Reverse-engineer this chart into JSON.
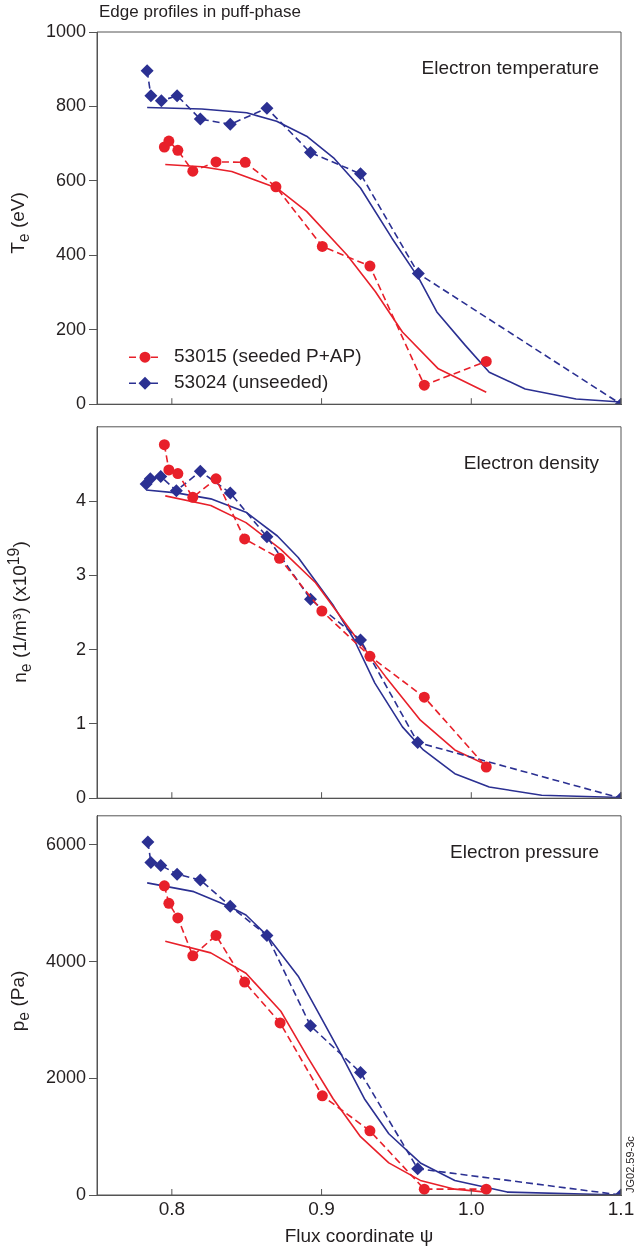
{
  "chart_data": [
    {
      "type": "line",
      "title": "Edge profiles in puff-phase",
      "ylabel": "T$_{e}$ (eV)",
      "annotations": [
        "Electron temperature"
      ],
      "xlim": [
        0.75,
        1.1
      ],
      "xticks": [
        0.8,
        0.9,
        1,
        1.1
      ],
      "ylim": [
        0,
        1000
      ],
      "yticks": [
        0,
        200,
        400,
        600,
        800,
        1000
      ],
      "tick_labels": "y",
      "grid": false,
      "legend": "bottom left",
      "series": [
        {
          "name": "53015 (seeded P+AP)",
          "color": "#e8202a",
          "marker": "circle",
          "line_style": "dashed",
          "x": [
            0.795,
            0.798,
            0.804,
            0.814,
            0.8295,
            0.849,
            0.8695,
            0.9005,
            0.9323,
            0.9686,
            1.01
          ],
          "values": [
            691,
            707,
            682,
            626,
            651,
            650,
            584,
            424,
            371,
            51,
            115
          ]
        },
        {
          "name": "53024 (unseeded)",
          "color": "#2b3092",
          "marker": "diamond",
          "line_style": "dashed",
          "x": [
            0.7835,
            0.786,
            0.793,
            0.8035,
            0.819,
            0.839,
            0.8635,
            0.8926,
            0.926,
            0.9646,
            1.1
          ],
          "values": [
            896,
            829,
            815,
            829,
            766,
            752,
            795,
            676,
            619,
            351,
            0
          ]
        },
        {
          "color": "#e8202a",
          "marker": "none",
          "line_style": "solid",
          "x": [
            0.7956,
            0.82,
            0.84,
            0.87,
            0.89,
            0.917,
            0.936,
            0.954,
            0.978,
            1.01
          ],
          "values": [
            644,
            638,
            625,
            581,
            518,
            401,
            302,
            194,
            95,
            32
          ]
        },
        {
          "color": "#2b3092",
          "marker": "none",
          "line_style": "solid",
          "x": [
            0.7835,
            0.82,
            0.85,
            0.87,
            0.89,
            0.908,
            0.926,
            0.947,
            0.965,
            0.977,
            0.996,
            1.012,
            1.036,
            1.07,
            1.1
          ],
          "values": [
            797,
            793,
            783,
            760,
            720,
            662,
            581,
            446,
            338,
            248,
            158,
            86,
            41,
            14,
            6
          ]
        }
      ]
    },
    {
      "type": "line",
      "ylabel": "n$_{e}$ (1/m³) (x10$^{19}$)",
      "annotations": [
        "Electron density"
      ],
      "xlim": [
        0.75,
        1.1
      ],
      "xticks": [
        0.8,
        0.9,
        1,
        1.1
      ],
      "ylim": [
        0,
        5
      ],
      "yticks": [
        0,
        1,
        2,
        3,
        4
      ],
      "tick_labels": "y",
      "grid": false,
      "series": [
        {
          "color": "#e8202a",
          "marker": "circle",
          "line_style": "dashed",
          "x": [
            0.795,
            0.798,
            0.804,
            0.814,
            0.8295,
            0.8486,
            0.8719,
            0.9002,
            0.9323,
            0.9686,
            1.01
          ],
          "values": [
            4.76,
            4.42,
            4.37,
            4.05,
            4.3,
            3.49,
            3.23,
            2.52,
            1.91,
            1.36,
            0.42
          ]
        },
        {
          "color": "#2b3092",
          "marker": "diamond",
          "line_style": "dashed",
          "x": [
            0.7828,
            0.7856,
            0.7926,
            0.803,
            0.819,
            0.839,
            0.8635,
            0.8926,
            0.926,
            0.9642,
            1.1
          ],
          "values": [
            4.23,
            4.3,
            4.33,
            4.14,
            4.4,
            4.11,
            3.52,
            2.68,
            2.13,
            0.75,
            0
          ]
        },
        {
          "color": "#e8202a",
          "marker": "none",
          "line_style": "solid",
          "x": [
            0.7956,
            0.826,
            0.8495,
            0.8728,
            0.896,
            0.919,
            0.9426,
            0.966,
            0.989,
            1.01
          ],
          "values": [
            4.07,
            3.94,
            3.71,
            3.35,
            2.9,
            2.27,
            1.64,
            1.05,
            0.65,
            0.45
          ]
        },
        {
          "color": "#2b3092",
          "marker": "none",
          "line_style": "solid",
          "x": [
            0.7828,
            0.803,
            0.826,
            0.8495,
            0.8705,
            0.8844,
            0.908,
            0.9216,
            0.9356,
            0.954,
            0.968,
            0.989,
            1.012,
            1.047,
            1.1
          ],
          "values": [
            4.15,
            4.11,
            4.03,
            3.85,
            3.53,
            3.24,
            2.59,
            2.14,
            1.55,
            0.96,
            0.65,
            0.33,
            0.15,
            0.04,
            0.01
          ]
        }
      ]
    },
    {
      "type": "line",
      "ylabel": "p$_{e}$ (Pa)",
      "xlabel": "Flux coordinate ψ",
      "annotations": [
        "Electron pressure",
        "JG02.59-3c"
      ],
      "xlim": [
        0.75,
        1.1
      ],
      "xticks": [
        0.8,
        0.9,
        {
          "value": 1,
          "label": "1.0"
        },
        1.1
      ],
      "ylim": [
        0,
        6500
      ],
      "yticks": [
        0,
        2000,
        4000,
        6000
      ],
      "grid": false,
      "series": [
        {
          "color": "#e8202a",
          "marker": "circle",
          "line_style": "dashed",
          "x": [
            0.795,
            0.798,
            0.804,
            0.814,
            0.8295,
            0.8486,
            0.8723,
            0.9005,
            0.9323,
            0.9686,
            1.01
          ],
          "values": [
            5300,
            5000,
            4750,
            4100,
            4450,
            3650,
            2950,
            1700,
            1100,
            100,
            100
          ]
        },
        {
          "color": "#2b3092",
          "marker": "diamond",
          "line_style": "dashed",
          "x": [
            0.784,
            0.786,
            0.7926,
            0.8035,
            0.819,
            0.839,
            0.8635,
            0.8926,
            0.926,
            0.9642,
            1.1
          ],
          "values": [
            6050,
            5700,
            5650,
            5500,
            5400,
            4950,
            4450,
            2900,
            2100,
            450,
            0
          ]
        },
        {
          "color": "#e8202a",
          "marker": "none",
          "line_style": "solid",
          "x": [
            0.7956,
            0.826,
            0.8495,
            0.8728,
            0.891,
            0.9077,
            0.926,
            0.9449,
            0.966,
            0.989,
            1.01
          ],
          "values": [
            4350,
            4150,
            3800,
            3150,
            2350,
            1650,
            1000,
            550,
            250,
            100,
            50
          ]
        },
        {
          "color": "#2b3092",
          "marker": "none",
          "line_style": "solid",
          "x": [
            0.7835,
            0.8147,
            0.838,
            0.8495,
            0.8635,
            0.8844,
            0.8984,
            0.9123,
            0.9286,
            0.9449,
            0.966,
            0.989,
            1.024,
            1.1
          ],
          "values": [
            5350,
            5200,
            4950,
            4800,
            4450,
            3750,
            3100,
            2450,
            1650,
            1050,
            550,
            250,
            50,
            0
          ]
        }
      ]
    }
  ]
}
